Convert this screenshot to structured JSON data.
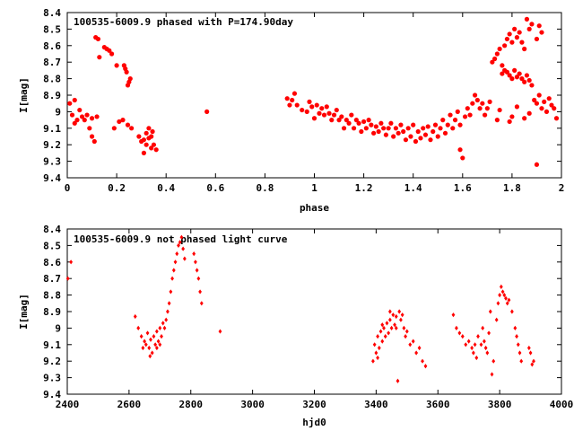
{
  "chart_data": [
    {
      "type": "scatter",
      "title": "100535-6009.9 phased with P=174.90day",
      "xlabel": "phase",
      "ylabel": "I[mag]",
      "xlim": [
        0,
        2
      ],
      "ylim": [
        8.4,
        9.4
      ],
      "y_inverted": true,
      "xticks": [
        "0",
        "0.2",
        "0.4",
        "0.6",
        "0.8",
        "1",
        "1.2",
        "1.4",
        "1.6",
        "1.8",
        "2"
      ],
      "yticks": [
        "8.4",
        "8.5",
        "8.6",
        "8.7",
        "8.8",
        "8.9",
        "9",
        "9.1",
        "9.2",
        "9.3",
        "9.4"
      ],
      "marker": "filled-circle",
      "color": "#ff0000",
      "points": [
        [
          0.01,
          8.95
        ],
        [
          0.02,
          9.02
        ],
        [
          0.03,
          8.93
        ],
        [
          0.03,
          9.07
        ],
        [
          0.04,
          9.05
        ],
        [
          0.05,
          8.99
        ],
        [
          0.06,
          9.03
        ],
        [
          0.07,
          9.05
        ],
        [
          0.08,
          9.02
        ],
        [
          0.09,
          9.1
        ],
        [
          0.1,
          9.15
        ],
        [
          0.1,
          9.04
        ],
        [
          0.11,
          9.18
        ],
        [
          0.12,
          9.03
        ],
        [
          0.115,
          8.55
        ],
        [
          0.125,
          8.56
        ],
        [
          0.13,
          8.67
        ],
        [
          0.15,
          8.61
        ],
        [
          0.16,
          8.62
        ],
        [
          0.17,
          8.63
        ],
        [
          0.18,
          8.65
        ],
        [
          0.19,
          9.1
        ],
        [
          0.2,
          8.72
        ],
        [
          0.21,
          9.06
        ],
        [
          0.225,
          9.05
        ],
        [
          0.23,
          8.72
        ],
        [
          0.235,
          8.74
        ],
        [
          0.24,
          8.76
        ],
        [
          0.245,
          8.84
        ],
        [
          0.25,
          8.82
        ],
        [
          0.245,
          9.08
        ],
        [
          0.255,
          8.8
        ],
        [
          0.26,
          9.1
        ],
        [
          0.29,
          9.15
        ],
        [
          0.3,
          9.18
        ],
        [
          0.31,
          9.25
        ],
        [
          0.31,
          9.17
        ],
        [
          0.32,
          9.2
        ],
        [
          0.32,
          9.13
        ],
        [
          0.33,
          9.16
        ],
        [
          0.33,
          9.1
        ],
        [
          0.34,
          9.22
        ],
        [
          0.34,
          9.15
        ],
        [
          0.345,
          9.12
        ],
        [
          0.35,
          9.2
        ],
        [
          0.36,
          9.23
        ],
        [
          0.565,
          9.0
        ],
        [
          0.89,
          8.92
        ],
        [
          0.9,
          8.96
        ],
        [
          0.91,
          8.93
        ],
        [
          0.92,
          8.89
        ],
        [
          0.93,
          8.96
        ],
        [
          0.95,
          8.99
        ],
        [
          0.97,
          9.0
        ],
        [
          0.98,
          8.94
        ],
        [
          0.99,
          8.97
        ],
        [
          1.0,
          9.04
        ],
        [
          1.01,
          8.96
        ],
        [
          1.02,
          9.01
        ],
        [
          1.03,
          8.98
        ],
        [
          1.04,
          9.02
        ],
        [
          1.05,
          8.97
        ],
        [
          1.06,
          9.01
        ],
        [
          1.07,
          9.05
        ],
        [
          1.08,
          9.02
        ],
        [
          1.09,
          8.99
        ],
        [
          1.1,
          9.05
        ],
        [
          1.11,
          9.03
        ],
        [
          1.12,
          9.1
        ],
        [
          1.13,
          9.05
        ],
        [
          1.14,
          9.07
        ],
        [
          1.15,
          9.02
        ],
        [
          1.16,
          9.1
        ],
        [
          1.17,
          9.05
        ],
        [
          1.18,
          9.07
        ],
        [
          1.19,
          9.12
        ],
        [
          1.2,
          9.06
        ],
        [
          1.21,
          9.1
        ],
        [
          1.22,
          9.05
        ],
        [
          1.23,
          9.08
        ],
        [
          1.24,
          9.13
        ],
        [
          1.25,
          9.09
        ],
        [
          1.26,
          9.12
        ],
        [
          1.27,
          9.07
        ],
        [
          1.28,
          9.1
        ],
        [
          1.29,
          9.14
        ],
        [
          1.3,
          9.1
        ],
        [
          1.31,
          9.07
        ],
        [
          1.32,
          9.15
        ],
        [
          1.33,
          9.1
        ],
        [
          1.34,
          9.13
        ],
        [
          1.35,
          9.08
        ],
        [
          1.36,
          9.12
        ],
        [
          1.37,
          9.17
        ],
        [
          1.38,
          9.1
        ],
        [
          1.39,
          9.15
        ],
        [
          1.4,
          9.08
        ],
        [
          1.41,
          9.18
        ],
        [
          1.42,
          9.12
        ],
        [
          1.43,
          9.16
        ],
        [
          1.44,
          9.1
        ],
        [
          1.45,
          9.14
        ],
        [
          1.46,
          9.09
        ],
        [
          1.47,
          9.17
        ],
        [
          1.48,
          9.12
        ],
        [
          1.49,
          9.08
        ],
        [
          1.5,
          9.15
        ],
        [
          1.51,
          9.1
        ],
        [
          1.52,
          9.05
        ],
        [
          1.53,
          9.13
        ],
        [
          1.54,
          9.08
        ],
        [
          1.55,
          9.02
        ],
        [
          1.56,
          9.1
        ],
        [
          1.57,
          9.05
        ],
        [
          1.58,
          9.0
        ],
        [
          1.59,
          9.08
        ],
        [
          1.6,
          9.28
        ],
        [
          1.59,
          9.23
        ],
        [
          1.61,
          9.03
        ],
        [
          1.62,
          8.98
        ],
        [
          1.63,
          9.02
        ],
        [
          1.64,
          8.95
        ],
        [
          1.65,
          8.9
        ],
        [
          1.66,
          8.93
        ],
        [
          1.67,
          8.98
        ],
        [
          1.68,
          8.95
        ],
        [
          1.69,
          9.02
        ],
        [
          1.7,
          8.98
        ],
        [
          1.71,
          8.94
        ],
        [
          1.72,
          8.7
        ],
        [
          1.73,
          8.68
        ],
        [
          1.74,
          8.65
        ],
        [
          1.75,
          8.62
        ],
        [
          1.76,
          8.72
        ],
        [
          1.77,
          8.6
        ],
        [
          1.78,
          8.56
        ],
        [
          1.79,
          8.53
        ],
        [
          1.8,
          8.58
        ],
        [
          1.81,
          8.5
        ],
        [
          1.82,
          8.55
        ],
        [
          1.83,
          8.52
        ],
        [
          1.84,
          8.58
        ],
        [
          1.85,
          8.62
        ],
        [
          1.86,
          8.44
        ],
        [
          1.87,
          8.5
        ],
        [
          1.88,
          8.47
        ],
        [
          1.9,
          8.56
        ],
        [
          1.91,
          8.48
        ],
        [
          1.92,
          8.52
        ],
        [
          1.76,
          8.77
        ],
        [
          1.77,
          8.75
        ],
        [
          1.78,
          8.76
        ],
        [
          1.79,
          8.78
        ],
        [
          1.8,
          8.8
        ],
        [
          1.81,
          8.75
        ],
        [
          1.82,
          8.79
        ],
        [
          1.83,
          8.77
        ],
        [
          1.84,
          8.8
        ],
        [
          1.85,
          8.82
        ],
        [
          1.86,
          8.78
        ],
        [
          1.87,
          8.81
        ],
        [
          1.88,
          8.84
        ],
        [
          1.89,
          8.93
        ],
        [
          1.9,
          8.95
        ],
        [
          1.91,
          8.9
        ],
        [
          1.92,
          8.98
        ],
        [
          1.93,
          8.94
        ],
        [
          1.94,
          9.0
        ],
        [
          1.95,
          8.92
        ],
        [
          1.96,
          8.96
        ],
        [
          1.97,
          8.98
        ],
        [
          1.98,
          9.04
        ],
        [
          1.9,
          9.32
        ],
        [
          1.8,
          9.03
        ],
        [
          1.79,
          9.06
        ],
        [
          1.82,
          8.97
        ],
        [
          1.85,
          9.04
        ],
        [
          1.87,
          9.01
        ],
        [
          1.75,
          8.99
        ],
        [
          1.74,
          9.05
        ]
      ]
    },
    {
      "type": "scatter",
      "title": "100535-6009.9 not  phased light curve",
      "xlabel": "hjd0",
      "ylabel": "I[mag]",
      "xlim": [
        2400,
        4000
      ],
      "ylim": [
        8.4,
        9.4
      ],
      "y_inverted": true,
      "xticks": [
        "2400",
        "2600",
        "2800",
        "3000",
        "3200",
        "3400",
        "3600",
        "3800",
        "4000"
      ],
      "yticks": [
        "8.4",
        "8.5",
        "8.6",
        "8.7",
        "8.8",
        "8.9",
        "9",
        "9.1",
        "9.2",
        "9.3",
        "9.4"
      ],
      "marker": "diamond",
      "color": "#ff0000",
      "points": [
        [
          2402,
          8.7
        ],
        [
          2412,
          8.6
        ],
        [
          2620,
          8.93
        ],
        [
          2630,
          9.0
        ],
        [
          2640,
          9.05
        ],
        [
          2650,
          9.08
        ],
        [
          2655,
          9.1
        ],
        [
          2660,
          9.03
        ],
        [
          2665,
          9.12
        ],
        [
          2670,
          9.07
        ],
        [
          2675,
          9.15
        ],
        [
          2680,
          9.05
        ],
        [
          2685,
          9.1
        ],
        [
          2690,
          9.02
        ],
        [
          2695,
          9.08
        ],
        [
          2700,
          9.0
        ],
        [
          2705,
          9.05
        ],
        [
          2710,
          8.97
        ],
        [
          2715,
          9.0
        ],
        [
          2720,
          8.95
        ],
        [
          2725,
          8.9
        ],
        [
          2730,
          8.85
        ],
        [
          2735,
          8.78
        ],
        [
          2740,
          8.7
        ],
        [
          2745,
          8.65
        ],
        [
          2750,
          8.6
        ],
        [
          2755,
          8.55
        ],
        [
          2760,
          8.5
        ],
        [
          2765,
          8.48
        ],
        [
          2770,
          8.45
        ],
        [
          2775,
          8.52
        ],
        [
          2780,
          8.58
        ],
        [
          2810,
          8.55
        ],
        [
          2815,
          8.6
        ],
        [
          2820,
          8.65
        ],
        [
          2825,
          8.7
        ],
        [
          2830,
          8.78
        ],
        [
          2835,
          8.85
        ],
        [
          2895,
          9.02
        ],
        [
          2645,
          9.12
        ],
        [
          2668,
          9.17
        ],
        [
          2690,
          9.12
        ],
        [
          2700,
          9.1
        ],
        [
          3390,
          9.2
        ],
        [
          3395,
          9.1
        ],
        [
          3400,
          9.15
        ],
        [
          3405,
          9.05
        ],
        [
          3410,
          9.12
        ],
        [
          3415,
          9.02
        ],
        [
          3420,
          9.08
        ],
        [
          3425,
          9.0
        ],
        [
          3430,
          9.05
        ],
        [
          3435,
          8.97
        ],
        [
          3440,
          9.03
        ],
        [
          3445,
          8.95
        ],
        [
          3450,
          9.0
        ],
        [
          3455,
          8.92
        ],
        [
          3460,
          8.98
        ],
        [
          3465,
          8.93
        ],
        [
          3470,
          9.32
        ],
        [
          3475,
          8.9
        ],
        [
          3480,
          8.95
        ],
        [
          3485,
          8.92
        ],
        [
          3490,
          9.0
        ],
        [
          3495,
          9.05
        ],
        [
          3500,
          9.02
        ],
        [
          3510,
          9.1
        ],
        [
          3520,
          9.08
        ],
        [
          3530,
          9.15
        ],
        [
          3540,
          9.12
        ],
        [
          3550,
          9.2
        ],
        [
          3560,
          9.23
        ],
        [
          3405,
          9.18
        ],
        [
          3420,
          8.98
        ],
        [
          3445,
          8.9
        ],
        [
          3465,
          9.0
        ],
        [
          3650,
          8.92
        ],
        [
          3660,
          9.0
        ],
        [
          3670,
          9.03
        ],
        [
          3680,
          9.05
        ],
        [
          3690,
          9.1
        ],
        [
          3700,
          9.08
        ],
        [
          3710,
          9.12
        ],
        [
          3715,
          9.15
        ],
        [
          3720,
          9.1
        ],
        [
          3725,
          9.18
        ],
        [
          3730,
          9.05
        ],
        [
          3740,
          9.1
        ],
        [
          3745,
          9.0
        ],
        [
          3750,
          9.08
        ],
        [
          3755,
          9.12
        ],
        [
          3760,
          9.15
        ],
        [
          3765,
          9.03
        ],
        [
          3770,
          8.9
        ],
        [
          3775,
          9.28
        ],
        [
          3780,
          9.2
        ],
        [
          3790,
          8.95
        ],
        [
          3795,
          8.85
        ],
        [
          3800,
          8.8
        ],
        [
          3805,
          8.75
        ],
        [
          3810,
          8.78
        ],
        [
          3815,
          8.8
        ],
        [
          3820,
          8.82
        ],
        [
          3825,
          8.85
        ],
        [
          3830,
          8.83
        ],
        [
          3840,
          8.9
        ],
        [
          3850,
          9.0
        ],
        [
          3855,
          9.05
        ],
        [
          3860,
          9.1
        ],
        [
          3865,
          9.15
        ],
        [
          3870,
          9.2
        ],
        [
          3900,
          9.15
        ],
        [
          3905,
          9.22
        ],
        [
          3910,
          9.2
        ],
        [
          3895,
          9.12
        ]
      ]
    }
  ]
}
